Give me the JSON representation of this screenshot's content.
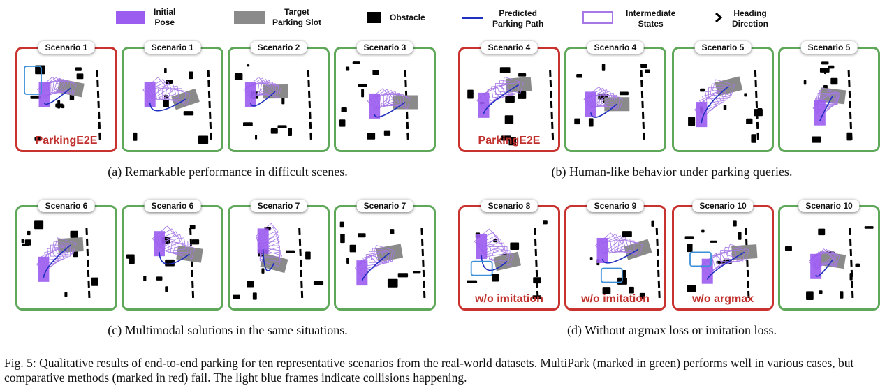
{
  "legend": [
    {
      "key": "initial",
      "label": "Initial\nPose",
      "color": "#9b5cf0"
    },
    {
      "key": "target",
      "label": "Target\nParking Slot",
      "color": "#8a8a8a"
    },
    {
      "key": "obstacle",
      "label": "Obstacle",
      "color": "#000000"
    },
    {
      "key": "path",
      "label": "Predicted\nParking Path",
      "color": "#1f2fbf"
    },
    {
      "key": "intermediate",
      "label": "Intermediate\nStates",
      "color": "#a678e6"
    },
    {
      "key": "heading",
      "label": "Heading\nDirection",
      "color": "#000000"
    }
  ],
  "panels": [
    {
      "title": "Scenario 1",
      "status": "red",
      "label": "ParkingE2E"
    },
    {
      "title": "Scenario 1",
      "status": "green",
      "label": ""
    },
    {
      "title": "Scenario 2",
      "status": "green",
      "label": ""
    },
    {
      "title": "Scenario 3",
      "status": "green",
      "label": ""
    },
    {
      "title": "Scenario 4",
      "status": "red",
      "label": "ParkingE2E"
    },
    {
      "title": "Scenario 4",
      "status": "green",
      "label": ""
    },
    {
      "title": "Scenario 5",
      "status": "green",
      "label": ""
    },
    {
      "title": "Scenario 5",
      "status": "green",
      "label": ""
    },
    {
      "title": "Scenario 6",
      "status": "green",
      "label": ""
    },
    {
      "title": "Scenario 6",
      "status": "green",
      "label": ""
    },
    {
      "title": "Scenario 7",
      "status": "green",
      "label": ""
    },
    {
      "title": "Scenario 7",
      "status": "green",
      "label": ""
    },
    {
      "title": "Scenario 8",
      "status": "red",
      "label": "w/o imitation"
    },
    {
      "title": "Scenario 9",
      "status": "red",
      "label": "w/o imitation"
    },
    {
      "title": "Scenario 10",
      "status": "red",
      "label": "w/o argmax"
    },
    {
      "title": "Scenario 10",
      "status": "green",
      "label": ""
    }
  ],
  "subcaptions": {
    "a": "(a)  Remarkable performance in difficult scenes.",
    "b": "(b)  Human-like behavior under parking queries.",
    "c": "(c)  Multimodal solutions in the same situations.",
    "d": "(d)  Without argmax loss or imitation loss."
  },
  "caption": "Fig. 5: Qualitative results of end-to-end parking for ten representative scenarios from the real-world datasets. MultiPark (marked in green) performs well in various cases, but comparative methods (marked in red) fail. The light blue frames indicate collisions happening."
}
